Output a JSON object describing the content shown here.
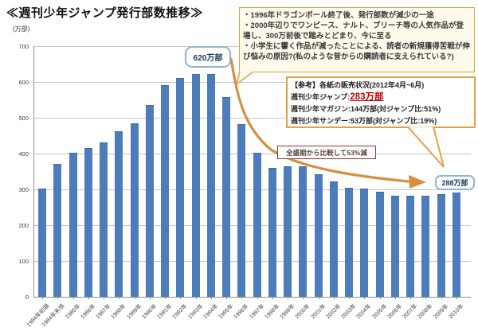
{
  "title": "≪週刊少年ジャンプ発行部数推移≫",
  "y_axis_unit": "(万部)",
  "chart_data": {
    "type": "bar",
    "title": "≪週刊少年ジャンプ発行部数推移≫",
    "ylabel": "(万部)",
    "ylim": [
      0,
      700
    ],
    "ytick_interval": 100,
    "grid": true,
    "legend": "none",
    "categories": [
      "1984年初頭",
      "1984年末頃",
      "1985年",
      "1986年",
      "1987年",
      "1988年",
      "1989年",
      "1990年",
      "1991年",
      "1992年",
      "1993年",
      "1994年",
      "1995年",
      "1996年",
      "1997年",
      "1998年",
      "1999年",
      "2000年",
      "2001年",
      "2002年",
      "2003年",
      "2004年",
      "2005年",
      "2006年",
      "2007年",
      "2008年",
      "2009年",
      "2010年"
    ],
    "values": [
      300,
      370,
      400,
      413,
      430,
      460,
      483,
      533,
      588,
      610,
      620,
      620,
      555,
      480,
      400,
      358,
      363,
      363,
      340,
      320,
      302,
      300,
      292,
      281,
      280,
      281,
      284,
      288
    ]
  },
  "annotations": {
    "note_box": {
      "lines": [
        "・1996年ドラゴンボール終了後、発行部数が減少の一途",
        "・2000年辺りでワンピース、ナルト、ブリーチ等の人気作品が登場し、300万前後で踏みとどまり、今に至る",
        "・小学生に響く作品が減ったことによる、読者の新規獲得苦戦が伸び悩みの原因?(私のような昔からの購読者に支えられている?)"
      ]
    },
    "reference_box": {
      "title": "【参考】各紙の販売状況(2012年4月~6月)",
      "jump_label": "週刊少年ジャンプ:",
      "jump_value": "283万部",
      "magazine_line": "週刊少年マガジン:144万部(対ジャンプ比:51%)",
      "sunday_line": "週刊少年サンデー:53万部(対ジャンプ比:19%)"
    },
    "decline_box": "全盛期から比較して53%減",
    "peak_callout": "620万部",
    "latest_callout": "288万部"
  },
  "colors": {
    "bar": "#4C7DBA",
    "gridline": "#C6C6C6",
    "axis": "#8C8C8C",
    "annotation_border_orange": "#E2A044",
    "note_box_background": "#FEFAEC",
    "arrow_orange": "#D68F3F",
    "callout_border_blue": "#92B1D5",
    "callout_text_navy": "#17365D",
    "decline_border_maroon": "#943634",
    "jump_value_red": "#C00000"
  }
}
